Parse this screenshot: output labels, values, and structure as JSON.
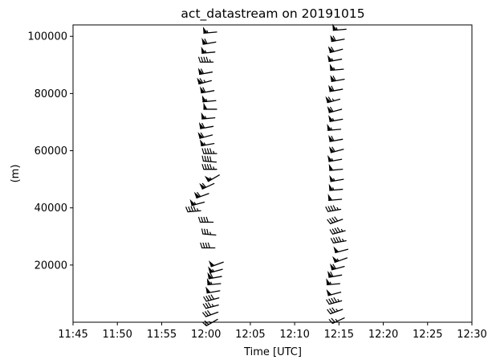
{
  "chart_data": {
    "type": "scatter",
    "plot_style": "wind-barbs",
    "title": "act_datastream on 20191015",
    "xlabel": "Time [UTC]",
    "ylabel": "(m)",
    "x_ticks": [
      "11:45",
      "11:50",
      "11:55",
      "12:00",
      "12:05",
      "12:10",
      "12:15",
      "12:20",
      "12:25",
      "12:30"
    ],
    "x_tick_minutes": [
      0,
      5,
      10,
      15,
      20,
      25,
      30,
      35,
      40,
      45
    ],
    "y_ticks": [
      20000,
      40000,
      60000,
      80000,
      100000
    ],
    "xlim_minutes": [
      0,
      45
    ],
    "ylim": [
      0,
      104000
    ],
    "grid": false,
    "series": [
      {
        "launch_time": "12:00",
        "launch_minute": 15.0,
        "points": [
          {
            "alt": 1000,
            "t": 16.3,
            "speed": 25,
            "dir": 240
          },
          {
            "alt": 3500,
            "t": 16.35,
            "speed": 30,
            "dir": 250
          },
          {
            "alt": 6000,
            "t": 16.4,
            "speed": 35,
            "dir": 255
          },
          {
            "alt": 8500,
            "t": 16.45,
            "speed": 40,
            "dir": 255
          },
          {
            "alt": 11000,
            "t": 16.55,
            "speed": 50,
            "dir": 260
          },
          {
            "alt": 13500,
            "t": 16.65,
            "speed": 55,
            "dir": 265
          },
          {
            "alt": 16000,
            "t": 16.75,
            "speed": 60,
            "dir": 260
          },
          {
            "alt": 18500,
            "t": 16.85,
            "speed": 55,
            "dir": 255
          },
          {
            "alt": 21000,
            "t": 16.95,
            "speed": 50,
            "dir": 250
          },
          {
            "alt": 26000,
            "t": 16.0,
            "speed": 40,
            "dir": 270
          },
          {
            "alt": 30500,
            "t": 16.1,
            "speed": 35,
            "dir": 275
          },
          {
            "alt": 35000,
            "t": 15.8,
            "speed": 40,
            "dir": 270
          },
          {
            "alt": 39000,
            "t": 14.4,
            "speed": 45,
            "dir": 265
          },
          {
            "alt": 42000,
            "t": 14.8,
            "speed": 55,
            "dir": 255
          },
          {
            "alt": 45000,
            "t": 15.3,
            "speed": 60,
            "dir": 250
          },
          {
            "alt": 48500,
            "t": 15.9,
            "speed": 60,
            "dir": 245
          },
          {
            "alt": 51500,
            "t": 16.5,
            "speed": 55,
            "dir": 240
          },
          {
            "alt": 53500,
            "t": 16.2,
            "speed": 45,
            "dir": 270
          },
          {
            "alt": 56000,
            "t": 16.15,
            "speed": 40,
            "dir": 275
          },
          {
            "alt": 59000,
            "t": 16.2,
            "speed": 45,
            "dir": 270
          },
          {
            "alt": 62500,
            "t": 15.9,
            "speed": 55,
            "dir": 260
          },
          {
            "alt": 65500,
            "t": 15.7,
            "speed": 60,
            "dir": 255
          },
          {
            "alt": 68500,
            "t": 15.8,
            "speed": 60,
            "dir": 260
          },
          {
            "alt": 71500,
            "t": 16.0,
            "speed": 55,
            "dir": 265
          },
          {
            "alt": 74500,
            "t": 16.2,
            "speed": 50,
            "dir": 270
          },
          {
            "alt": 77500,
            "t": 16.1,
            "speed": 55,
            "dir": 265
          },
          {
            "alt": 81000,
            "t": 15.9,
            "speed": 60,
            "dir": 260
          },
          {
            "alt": 84500,
            "t": 15.6,
            "speed": 65,
            "dir": 255
          },
          {
            "alt": 87500,
            "t": 15.7,
            "speed": 60,
            "dir": 260
          },
          {
            "alt": 91000,
            "t": 15.8,
            "speed": 45,
            "dir": 270
          },
          {
            "alt": 94500,
            "t": 16.0,
            "speed": 55,
            "dir": 265
          },
          {
            "alt": 98000,
            "t": 16.1,
            "speed": 60,
            "dir": 260
          },
          {
            "alt": 101500,
            "t": 16.2,
            "speed": 55,
            "dir": 265
          }
        ]
      },
      {
        "launch_time": "12:15",
        "launch_minute": 30.0,
        "points": [
          {
            "alt": 1500,
            "t": 30.6,
            "speed": 25,
            "dir": 245
          },
          {
            "alt": 4500,
            "t": 30.4,
            "speed": 35,
            "dir": 250
          },
          {
            "alt": 7500,
            "t": 30.3,
            "speed": 45,
            "dir": 255
          },
          {
            "alt": 10500,
            "t": 30.2,
            "speed": 50,
            "dir": 255
          },
          {
            "alt": 13500,
            "t": 30.1,
            "speed": 55,
            "dir": 265
          },
          {
            "alt": 16500,
            "t": 30.3,
            "speed": 60,
            "dir": 260
          },
          {
            "alt": 19500,
            "t": 30.6,
            "speed": 60,
            "dir": 255
          },
          {
            "alt": 22500,
            "t": 30.9,
            "speed": 55,
            "dir": 250
          },
          {
            "alt": 25500,
            "t": 31.0,
            "speed": 50,
            "dir": 255
          },
          {
            "alt": 28500,
            "t": 30.8,
            "speed": 45,
            "dir": 260
          },
          {
            "alt": 32000,
            "t": 30.7,
            "speed": 45,
            "dir": 255
          },
          {
            "alt": 36000,
            "t": 30.4,
            "speed": 40,
            "dir": 250
          },
          {
            "alt": 39500,
            "t": 30.2,
            "speed": 45,
            "dir": 260
          },
          {
            "alt": 43000,
            "t": 30.3,
            "speed": 50,
            "dir": 265
          },
          {
            "alt": 46500,
            "t": 30.4,
            "speed": 55,
            "dir": 265
          },
          {
            "alt": 50000,
            "t": 30.5,
            "speed": 55,
            "dir": 260
          },
          {
            "alt": 53500,
            "t": 30.4,
            "speed": 50,
            "dir": 265
          },
          {
            "alt": 57000,
            "t": 30.3,
            "speed": 55,
            "dir": 260
          },
          {
            "alt": 60500,
            "t": 30.5,
            "speed": 60,
            "dir": 255
          },
          {
            "alt": 64000,
            "t": 30.4,
            "speed": 60,
            "dir": 260
          },
          {
            "alt": 67500,
            "t": 30.2,
            "speed": 55,
            "dir": 265
          },
          {
            "alt": 71000,
            "t": 30.4,
            "speed": 55,
            "dir": 260
          },
          {
            "alt": 74500,
            "t": 30.3,
            "speed": 60,
            "dir": 255
          },
          {
            "alt": 78000,
            "t": 30.1,
            "speed": 65,
            "dir": 255
          },
          {
            "alt": 81500,
            "t": 30.4,
            "speed": 60,
            "dir": 260
          },
          {
            "alt": 85000,
            "t": 30.6,
            "speed": 60,
            "dir": 260
          },
          {
            "alt": 88500,
            "t": 30.5,
            "speed": 55,
            "dir": 265
          },
          {
            "alt": 92000,
            "t": 30.3,
            "speed": 55,
            "dir": 260
          },
          {
            "alt": 95500,
            "t": 30.4,
            "speed": 60,
            "dir": 255
          },
          {
            "alt": 99000,
            "t": 30.6,
            "speed": 60,
            "dir": 260
          },
          {
            "alt": 102500,
            "t": 30.8,
            "speed": 55,
            "dir": 265
          }
        ]
      }
    ]
  },
  "colors": {
    "barb": "#000000",
    "axes": "#000000",
    "background": "#ffffff"
  }
}
